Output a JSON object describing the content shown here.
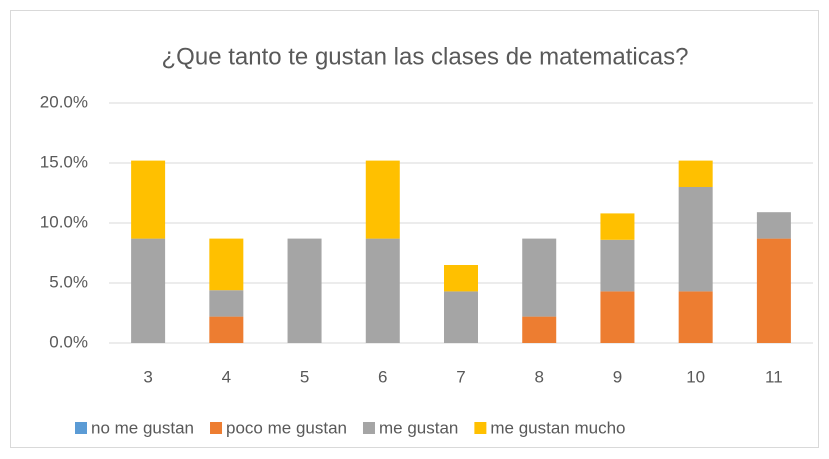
{
  "chart_data": {
    "type": "stacked_bar",
    "title": "¿Que tanto te gustan las clases de  matematicas?",
    "categories": [
      "3",
      "4",
      "5",
      "6",
      "7",
      "8",
      "9",
      "10",
      "11"
    ],
    "series": [
      {
        "name": "no me gustan",
        "color": "#5b9bd5",
        "values": [
          0,
          0,
          0,
          0,
          0,
          0,
          0,
          0,
          0
        ]
      },
      {
        "name": "poco me gustan",
        "color": "#ed7d31",
        "values": [
          0,
          2.2,
          0,
          0,
          0,
          2.2,
          4.3,
          4.3,
          8.7
        ]
      },
      {
        "name": "me gustan",
        "color": "#a5a5a5",
        "values": [
          8.7,
          2.2,
          8.7,
          8.7,
          4.3,
          6.5,
          4.3,
          8.7,
          2.2
        ]
      },
      {
        "name": "me gustan mucho",
        "color": "#ffc000",
        "values": [
          6.5,
          4.3,
          0,
          6.5,
          2.2,
          0,
          2.2,
          2.2,
          0
        ]
      }
    ],
    "ylim": [
      0,
      20
    ],
    "yticks": [
      {
        "value": 0,
        "label": "0.0%"
      },
      {
        "value": 5,
        "label": "5.0%"
      },
      {
        "value": 10,
        "label": "10.0%"
      },
      {
        "value": 15,
        "label": "15.0%"
      },
      {
        "value": 20,
        "label": "20.0%"
      }
    ],
    "grid": true,
    "legend": "bottom"
  }
}
